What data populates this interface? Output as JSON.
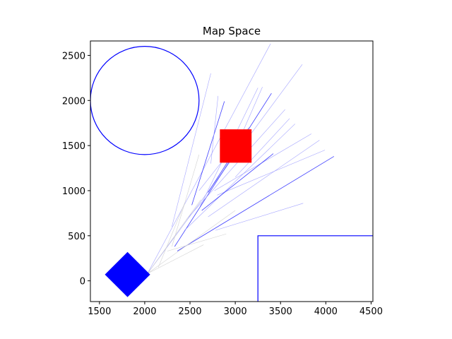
{
  "chart_data": {
    "type": "scatter",
    "title": "Map Space",
    "xlabel": "",
    "ylabel": "",
    "xlim": [
      1400,
      4520
    ],
    "ylim": [
      -230,
      2660
    ],
    "xticks": [
      1500,
      2000,
      2500,
      3000,
      3500,
      4000,
      4500
    ],
    "yticks": [
      0,
      500,
      1000,
      1500,
      2000,
      2500
    ],
    "grid": false,
    "colors": {
      "obstacle_outline": "#0000ff",
      "robot_fill": "#0000ff",
      "goal_fill": "#ff0000",
      "ray_dark": "#2a2aff",
      "ray_light": "#9a9aff",
      "ray_faint": "#d2d2d2"
    },
    "circle_obstacle": {
      "center": [
        2000,
        2000
      ],
      "radius": 600
    },
    "corner_obstacle": {
      "corner": [
        3250,
        500
      ],
      "extends_to": [
        4520,
        -230
      ]
    },
    "robot": {
      "center": [
        1810,
        70
      ],
      "half_diagonal": 250
    },
    "goal": {
      "x": [
        2830,
        3180
      ],
      "y": [
        1310,
        1680
      ]
    },
    "rays": [
      {
        "from": [
          2030,
          80
        ],
        "to": [
          3390,
          2630
        ],
        "shade": "light"
      },
      {
        "from": [
          2030,
          80
        ],
        "to": [
          3740,
          2400
        ],
        "shade": "light"
      },
      {
        "from": [
          2300,
          600
        ],
        "to": [
          2730,
          2300
        ],
        "shade": "light"
      },
      {
        "from": [
          2520,
          840
        ],
        "to": [
          2880,
          1990
        ],
        "shade": "dark"
      },
      {
        "from": [
          2610,
          820
        ],
        "to": [
          3250,
          2140
        ],
        "shade": "light"
      },
      {
        "from": [
          2700,
          980
        ],
        "to": [
          3400,
          2080
        ],
        "shade": "dark"
      },
      {
        "from": [
          2330,
          380
        ],
        "to": [
          3010,
          1440
        ],
        "shade": "dark"
      },
      {
        "from": [
          2460,
          680
        ],
        "to": [
          3550,
          1900
        ],
        "shade": "light"
      },
      {
        "from": [
          2440,
          560
        ],
        "to": [
          3660,
          1740
        ],
        "shade": "light"
      },
      {
        "from": [
          2360,
          330
        ],
        "to": [
          4090,
          1380
        ],
        "shade": "dark"
      },
      {
        "from": [
          2770,
          1000
        ],
        "to": [
          3840,
          1630
        ],
        "shade": "light"
      },
      {
        "from": [
          2700,
          710
        ],
        "to": [
          3930,
          1560
        ],
        "shade": "light"
      },
      {
        "from": [
          2800,
          950
        ],
        "to": [
          3990,
          1450
        ],
        "shade": "light"
      },
      {
        "from": [
          2780,
          560
        ],
        "to": [
          3750,
          860
        ],
        "shade": "light"
      },
      {
        "from": [
          2630,
          780
        ],
        "to": [
          3420,
          1410
        ],
        "shade": "dark"
      },
      {
        "from": [
          2030,
          80
        ],
        "to": [
          2620,
          900
        ],
        "shade": "faint"
      },
      {
        "from": [
          2030,
          80
        ],
        "to": [
          3000,
          780
        ],
        "shade": "faint"
      },
      {
        "from": [
          2030,
          80
        ],
        "to": [
          2650,
          400
        ],
        "shade": "faint"
      },
      {
        "from": [
          2300,
          380
        ],
        "to": [
          2600,
          1400
        ],
        "shade": "faint"
      },
      {
        "from": [
          2250,
          330
        ],
        "to": [
          2900,
          520
        ],
        "shade": "faint"
      },
      {
        "from": [
          2150,
          150
        ],
        "to": [
          2440,
          860
        ],
        "shade": "faint"
      },
      {
        "from": [
          2730,
          1300
        ],
        "to": [
          2810,
          2050
        ],
        "shade": "light"
      },
      {
        "from": [
          2950,
          1350
        ],
        "to": [
          3300,
          2150
        ],
        "shade": "light"
      },
      {
        "from": [
          3000,
          1150
        ],
        "to": [
          3600,
          1800
        ],
        "shade": "light"
      },
      {
        "from": [
          2600,
          1000
        ],
        "to": [
          3150,
          1700
        ],
        "shade": "light"
      }
    ]
  }
}
